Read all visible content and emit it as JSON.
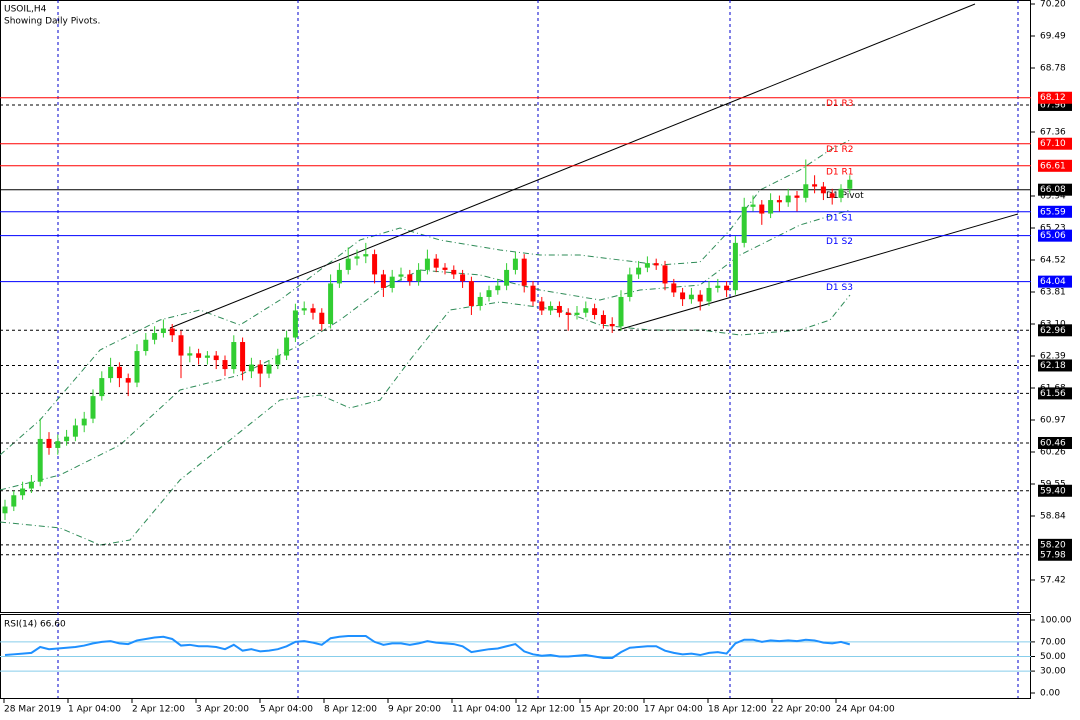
{
  "chart_data": {
    "type": "candlestick",
    "title": "USOIL,H4",
    "subtitle": "Showing Daily Pivots.",
    "bull_color": "#32cd32",
    "bear_color": "#ff0000",
    "ylim": [
      57.42,
      70.2
    ],
    "yticks": [
      {
        "value": 70.2,
        "label": "70.20"
      },
      69.49,
      68.78,
      67.36,
      65.94,
      65.23,
      64.52,
      63.81,
      {
        "value": 63.1,
        "label": "63.10"
      },
      62.39,
      61.68,
      60.97,
      60.26,
      59.55,
      58.84,
      57.42
    ],
    "x_labels": [
      "28 Mar 2019",
      "1 Apr 04:00",
      "2 Apr 12:00",
      "3 Apr 20:00",
      "5 Apr 04:00",
      "8 Apr 12:00",
      "9 Apr 20:00",
      "11 Apr 04:00",
      "12 Apr 12:00",
      "15 Apr 20:00",
      "17 Apr 04:00",
      "18 Apr 12:00",
      "22 Apr 20:00",
      "24 Apr 04:00"
    ],
    "ohlc": [
      [
        58.9,
        59.2,
        58.75,
        59.05
      ],
      [
        59.05,
        59.4,
        58.95,
        59.3
      ],
      [
        59.3,
        59.6,
        59.2,
        59.45
      ],
      [
        59.45,
        59.75,
        59.35,
        59.6
      ],
      [
        59.6,
        61.0,
        59.5,
        60.55
      ],
      [
        60.55,
        60.7,
        60.2,
        60.35
      ],
      [
        60.35,
        60.65,
        60.2,
        60.5
      ],
      [
        60.5,
        60.75,
        60.4,
        60.6
      ],
      [
        60.6,
        61.0,
        60.5,
        60.85
      ],
      [
        60.85,
        61.15,
        60.7,
        61.0
      ],
      [
        61.0,
        61.65,
        60.9,
        61.5
      ],
      [
        61.5,
        62.05,
        61.4,
        61.9
      ],
      [
        61.9,
        62.35,
        61.8,
        62.15
      ],
      [
        62.15,
        62.25,
        61.7,
        61.9
      ],
      [
        61.9,
        62.0,
        61.5,
        61.8
      ],
      [
        61.8,
        62.65,
        61.7,
        62.5
      ],
      [
        62.5,
        62.9,
        62.4,
        62.75
      ],
      [
        62.75,
        63.05,
        62.65,
        62.9
      ],
      [
        62.9,
        63.2,
        62.8,
        63.0
      ],
      [
        63.0,
        63.1,
        62.7,
        62.85
      ],
      [
        62.85,
        62.95,
        61.9,
        62.4
      ],
      [
        62.4,
        62.6,
        62.25,
        62.45
      ],
      [
        62.45,
        62.55,
        62.2,
        62.35
      ],
      [
        62.35,
        62.5,
        62.2,
        62.4
      ],
      [
        62.4,
        62.5,
        62.1,
        62.3
      ],
      [
        62.3,
        62.4,
        61.95,
        62.1
      ],
      [
        62.1,
        62.85,
        62.0,
        62.7
      ],
      [
        62.7,
        62.8,
        61.85,
        62.05
      ],
      [
        62.05,
        62.35,
        61.9,
        62.2
      ],
      [
        62.2,
        62.3,
        61.7,
        62.0
      ],
      [
        62.0,
        62.3,
        61.9,
        62.2
      ],
      [
        62.2,
        62.55,
        62.1,
        62.4
      ],
      [
        62.4,
        62.95,
        62.3,
        62.8
      ],
      [
        62.8,
        63.55,
        62.7,
        63.4
      ],
      [
        63.4,
        63.6,
        63.3,
        63.45
      ],
      [
        63.45,
        63.55,
        63.2,
        63.35
      ],
      [
        63.35,
        63.45,
        62.95,
        63.1
      ],
      [
        63.1,
        64.2,
        63.0,
        64.0
      ],
      [
        64.0,
        64.45,
        63.9,
        64.3
      ],
      [
        64.3,
        64.8,
        64.2,
        64.55
      ],
      [
        64.55,
        64.75,
        64.4,
        64.6
      ],
      [
        64.6,
        64.9,
        64.45,
        64.65
      ],
      [
        64.65,
        64.75,
        64.0,
        64.2
      ],
      [
        64.2,
        64.3,
        63.7,
        63.9
      ],
      [
        63.9,
        64.3,
        63.8,
        64.15
      ],
      [
        64.15,
        64.35,
        64.05,
        64.2
      ],
      [
        64.2,
        64.3,
        63.95,
        64.05
      ],
      [
        64.05,
        64.45,
        63.95,
        64.3
      ],
      [
        64.3,
        64.75,
        64.2,
        64.55
      ],
      [
        64.55,
        64.65,
        64.25,
        64.35
      ],
      [
        64.35,
        64.45,
        64.2,
        64.3
      ],
      [
        64.3,
        64.4,
        64.1,
        64.2
      ],
      [
        64.2,
        64.3,
        63.9,
        64.05
      ],
      [
        64.05,
        64.15,
        63.3,
        63.5
      ],
      [
        63.5,
        63.8,
        63.4,
        63.7
      ],
      [
        63.7,
        63.95,
        63.6,
        63.85
      ],
      [
        63.85,
        64.1,
        63.75,
        63.95
      ],
      [
        63.95,
        64.45,
        63.85,
        64.3
      ],
      [
        64.3,
        64.7,
        64.2,
        64.55
      ],
      [
        64.55,
        64.65,
        63.8,
        63.95
      ],
      [
        63.95,
        64.05,
        63.5,
        63.6
      ],
      [
        63.6,
        63.7,
        63.3,
        63.4
      ],
      [
        63.4,
        63.6,
        63.3,
        63.5
      ],
      [
        63.5,
        63.6,
        63.25,
        63.35
      ],
      [
        63.35,
        63.45,
        62.95,
        63.3
      ],
      [
        63.3,
        63.5,
        63.2,
        63.35
      ],
      [
        63.35,
        63.6,
        63.25,
        63.45
      ],
      [
        63.45,
        63.55,
        63.2,
        63.3
      ],
      [
        63.3,
        63.4,
        63.0,
        63.1
      ],
      [
        63.1,
        63.25,
        62.9,
        63.05
      ],
      [
        63.05,
        63.85,
        62.95,
        63.7
      ],
      [
        63.7,
        64.35,
        63.6,
        64.2
      ],
      [
        64.2,
        64.5,
        64.1,
        64.35
      ],
      [
        64.35,
        64.6,
        64.25,
        64.45
      ],
      [
        64.45,
        64.55,
        64.3,
        64.4
      ],
      [
        64.4,
        64.5,
        63.85,
        64.0
      ],
      [
        64.0,
        64.1,
        63.7,
        63.8
      ],
      [
        63.8,
        63.9,
        63.5,
        63.65
      ],
      [
        63.65,
        63.9,
        63.55,
        63.75
      ],
      [
        63.75,
        63.85,
        63.4,
        63.6
      ],
      [
        63.6,
        64.05,
        63.5,
        63.9
      ],
      [
        63.9,
        64.1,
        63.8,
        63.95
      ],
      [
        63.95,
        64.05,
        63.7,
        63.85
      ],
      [
        63.85,
        65.05,
        63.75,
        64.9
      ],
      [
        64.9,
        65.9,
        64.8,
        65.7
      ],
      [
        65.7,
        65.95,
        65.6,
        65.75
      ],
      [
        65.75,
        65.85,
        65.3,
        65.55
      ],
      [
        65.55,
        66.0,
        65.45,
        65.85
      ],
      [
        65.85,
        65.95,
        65.6,
        65.8
      ],
      [
        65.8,
        66.1,
        65.7,
        65.95
      ],
      [
        65.95,
        66.05,
        65.6,
        65.9
      ],
      [
        65.9,
        66.75,
        65.8,
        66.2
      ],
      [
        66.2,
        66.4,
        66.0,
        66.15
      ],
      [
        66.15,
        66.25,
        65.85,
        66.0
      ],
      [
        66.0,
        66.1,
        65.75,
        65.9
      ],
      [
        65.9,
        66.2,
        65.8,
        66.1
      ],
      [
        66.1,
        66.4,
        66.0,
        66.3
      ]
    ],
    "levels": [
      {
        "name": "D1 R3",
        "value": 68.12,
        "color": "#ff0000"
      },
      {
        "name": "D1 R2",
        "value": 67.1,
        "label": "67.10",
        "color": "#ff0000"
      },
      {
        "name": "D1 R1",
        "value": 66.61,
        "color": "#ff0000"
      },
      {
        "name": "D1 Pivot",
        "value": 66.08,
        "color": "#000000"
      },
      {
        "name": "D1 S1",
        "value": 65.59,
        "color": "#0000ff"
      },
      {
        "name": "D1 S2",
        "value": 65.06,
        "color": "#0000ff"
      },
      {
        "name": "D1 S3",
        "value": 64.04,
        "color": "#0000ff"
      }
    ],
    "dashed_levels": [
      67.96,
      62.96,
      62.18,
      61.56,
      60.46,
      {
        "value": 59.4,
        "label": "59.40"
      },
      {
        "value": 58.2,
        "label": "58.20"
      },
      57.98
    ],
    "rsi": {
      "title": "RSI(14) 66.60",
      "color": "#1e90ff",
      "ylim": [
        0,
        100
      ],
      "yticks": [
        {
          "value": 100,
          "label": "100.00"
        },
        {
          "value": 70,
          "label": "70.00"
        },
        {
          "value": 50,
          "label": "50.00"
        },
        {
          "value": 30,
          "label": "30.00"
        },
        {
          "value": 0,
          "label": "0.00"
        }
      ],
      "levels": [
        70,
        50,
        30
      ],
      "values": [
        52,
        53,
        54,
        55,
        63,
        60,
        61,
        62,
        63,
        65,
        68,
        70,
        71,
        68,
        67,
        72,
        74,
        76,
        77,
        74,
        65,
        66,
        64,
        64,
        63,
        60,
        66,
        58,
        60,
        57,
        58,
        60,
        64,
        70,
        71,
        69,
        66,
        75,
        77,
        78,
        78,
        78,
        70,
        66,
        68,
        68,
        66,
        68,
        71,
        69,
        68,
        67,
        64,
        56,
        58,
        60,
        61,
        64,
        67,
        57,
        53,
        51,
        52,
        50,
        50,
        51,
        52,
        50,
        48,
        48,
        56,
        62,
        63,
        64,
        64,
        58,
        55,
        53,
        54,
        52,
        55,
        56,
        54,
        68,
        73,
        73,
        70,
        72,
        71,
        72,
        71,
        73,
        72,
        69,
        68,
        70,
        66.6
      ]
    }
  }
}
